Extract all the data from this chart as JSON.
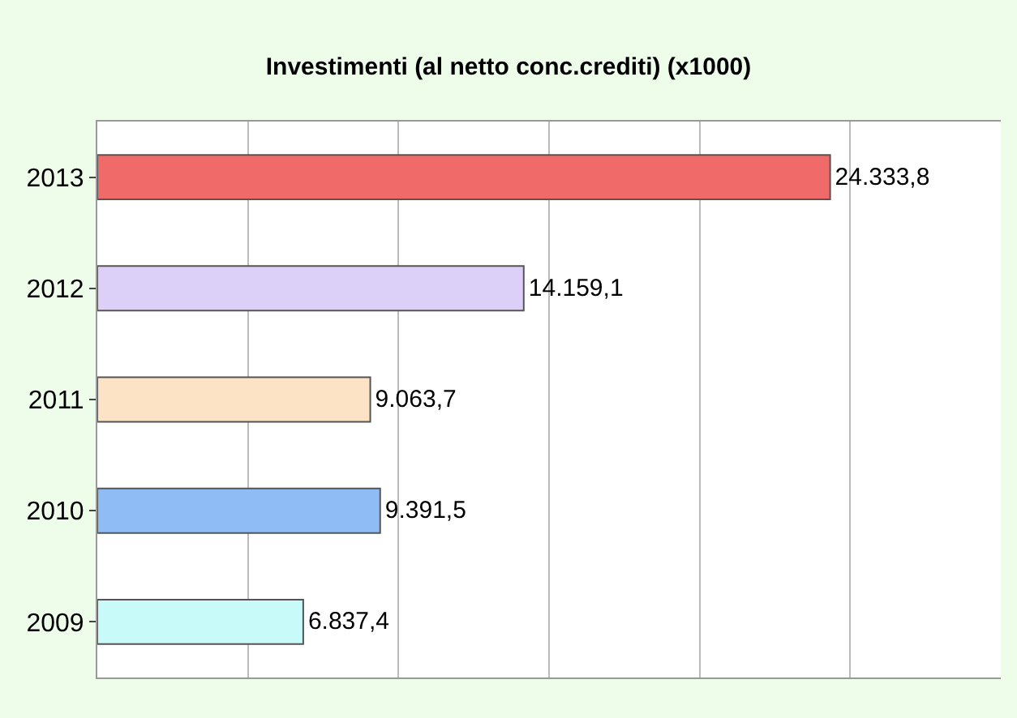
{
  "chart_data": {
    "type": "bar",
    "orientation": "horizontal",
    "title": "Investimenti (al netto conc.crediti) (x1000)",
    "categories": [
      "2013",
      "2012",
      "2011",
      "2010",
      "2009"
    ],
    "values": [
      24333.8,
      14159.1,
      9063.7,
      9391.5,
      6837.4
    ],
    "colors": [
      "#f06a6a",
      "#ddd0f8",
      "#fde3c6",
      "#8fbcf5",
      "#c8fafa"
    ],
    "value_labels": [
      "24.333,8",
      "14.159,1",
      "9.063,7",
      "9.391,5",
      "6.837,4"
    ],
    "xlim": [
      0,
      30000
    ],
    "xticks": [
      {
        "value": 0,
        "label": null
      },
      {
        "value": 5000,
        "label": null
      },
      {
        "value": 10000,
        "label": null
      },
      {
        "value": 15000,
        "label": null
      },
      {
        "value": 20000,
        "label": null
      },
      {
        "value": 25000,
        "label": null
      },
      {
        "value": 30000,
        "label": null
      }
    ],
    "tick_labels": "y",
    "grid": "x",
    "legend": false
  }
}
